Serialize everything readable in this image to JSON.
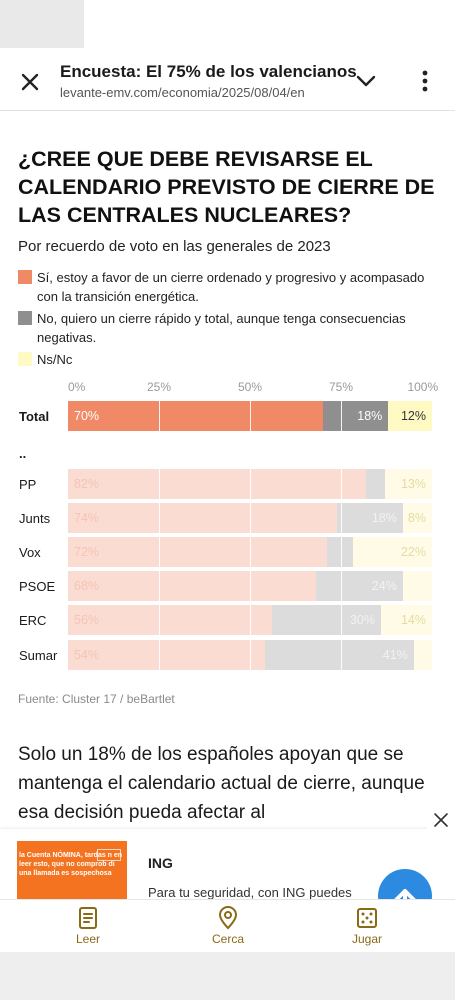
{
  "header": {
    "title": "Encuesta: El 75% de los valencianos",
    "url": "levante-emv.com/economia/2025/08/04/en"
  },
  "question": "¿CREE QUE DEBE REVISARSE EL CALENDARIO PREVISTO DE CIERRE DE LAS CENTRALES NUCLEARES?",
  "subtitle": "Por recuerdo de voto en las generales de 2023",
  "legend": [
    {
      "label": "Sí, estoy a favor de un cierre ordenado y progresivo y acompasado con la transición energética.",
      "color": "#f08a66"
    },
    {
      "label": "No, quiero un cierre rápido y total, aunque tenga consecuencias negativas.",
      "color": "#8f8f8f"
    },
    {
      "label": "Ns/Nc",
      "color": "#fff9c4"
    }
  ],
  "chart_data": {
    "type": "bar",
    "orientation": "horizontal-stacked",
    "x_ticks": [
      "0%",
      "25%",
      "50%",
      "75%",
      "100%"
    ],
    "xlim": [
      0,
      100
    ],
    "separator_label": "..",
    "series": [
      {
        "name": "Sí, estoy a favor de un cierre ordenado y progresivo y acompasado con la transición energética.",
        "color": "#f08a66",
        "faded_color": "#fbdcd3"
      },
      {
        "name": "No, quiero un cierre rápido y total, aunque tenga consecuencias negativas.",
        "color": "#8f8f8f",
        "faded_color": "#dcdcdc"
      },
      {
        "name": "Ns/Nc",
        "color": "#fff9c4",
        "faded_color": "#fffbe6"
      }
    ],
    "rows": [
      {
        "category": "Total",
        "values": [
          70,
          18,
          12
        ],
        "labels": [
          "70%",
          "18%",
          "12%"
        ],
        "highlight": true
      },
      {
        "category": "PP",
        "values": [
          82,
          5,
          13
        ],
        "labels": [
          "82%",
          "",
          "13%"
        ],
        "highlight": false
      },
      {
        "category": "Junts",
        "values": [
          74,
          18,
          8
        ],
        "labels": [
          "74%",
          "18%",
          "8%"
        ],
        "highlight": false
      },
      {
        "category": "Vox",
        "values": [
          72,
          7,
          22
        ],
        "labels": [
          "72%",
          "",
          "22%"
        ],
        "highlight": false
      },
      {
        "category": "PSOE",
        "values": [
          68,
          24,
          8
        ],
        "labels": [
          "68%",
          "24%",
          ""
        ],
        "highlight": false
      },
      {
        "category": "ERC",
        "values": [
          56,
          30,
          14
        ],
        "labels": [
          "56%",
          "30%",
          "14%"
        ],
        "highlight": false
      },
      {
        "category": "Sumar",
        "values": [
          54,
          41,
          5
        ],
        "labels": [
          "54%",
          "41%",
          ""
        ],
        "highlight": false
      }
    ]
  },
  "source": "Fuente: Cluster 17 / beBartlet",
  "article": "Solo un 18% de los españoles apoyan que se mantenga el calendario actual de cierre, aunque esa decisión pueda afectar al",
  "ad": {
    "image_text": "la Cuenta NÓMINA, tardas n en leer esto, que no comprob di una llamada es sospechosa",
    "brand": "ING",
    "text": "Para tu seguridad, con ING puedes"
  },
  "bottom_nav": [
    {
      "label": "Leer",
      "icon": "document-icon"
    },
    {
      "label": "Cerca",
      "icon": "location-pin-icon"
    },
    {
      "label": "Jugar",
      "icon": "dice-icon"
    }
  ]
}
